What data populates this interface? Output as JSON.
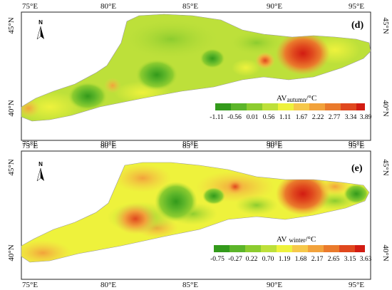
{
  "panels": [
    {
      "letter": "(d)",
      "legend_title_main": "AV",
      "legend_title_sub": "autumn",
      "legend_title_unit": "/°C",
      "legend_values": [
        "-1.11",
        "-0.56",
        "0.01",
        "0.56",
        "1.11",
        "1.67",
        "2.22",
        "2.77",
        "3.34",
        "3.89"
      ],
      "top_axis_labels": [
        "75°E",
        "80°E",
        "85°E",
        "90°E",
        "95°E"
      ],
      "bottom_axis_labels": [
        "75°E",
        "80°E",
        "85°E",
        "90°E",
        "95°E"
      ],
      "left_axis_labels": [
        "45°N",
        "40°N"
      ],
      "right_axis_labels": [
        "45°N",
        "40°N"
      ],
      "north_label": "N"
    },
    {
      "letter": "(e)",
      "legend_title_main": "AV",
      "legend_title_sub": "winter",
      "legend_title_unit": "/°C",
      "legend_values": [
        "-0.75",
        "-0.27",
        "0.22",
        "0.70",
        "1.19",
        "1.68",
        "2.17",
        "2.65",
        "3.15",
        "3.63"
      ],
      "top_axis_labels": [
        "75°E",
        "80°E",
        "85°E",
        "90°E",
        "95°E"
      ],
      "bottom_axis_labels": [
        "75°E",
        "80°E",
        "85°E",
        "90°E",
        "95°E"
      ],
      "left_axis_labels": [
        "45°N",
        "40°N"
      ],
      "right_axis_labels": [
        "45°N",
        "40°N"
      ],
      "north_label": "N"
    }
  ],
  "colors": {
    "scale": [
      "#339a1b",
      "#5cb52a",
      "#8ccc2f",
      "#bde03a",
      "#eef23c",
      "#f6c84a",
      "#f2a23b",
      "#ea7a2c",
      "#e0481e",
      "#d21c12"
    ],
    "frame": "#222222",
    "background": "#ffffff"
  }
}
